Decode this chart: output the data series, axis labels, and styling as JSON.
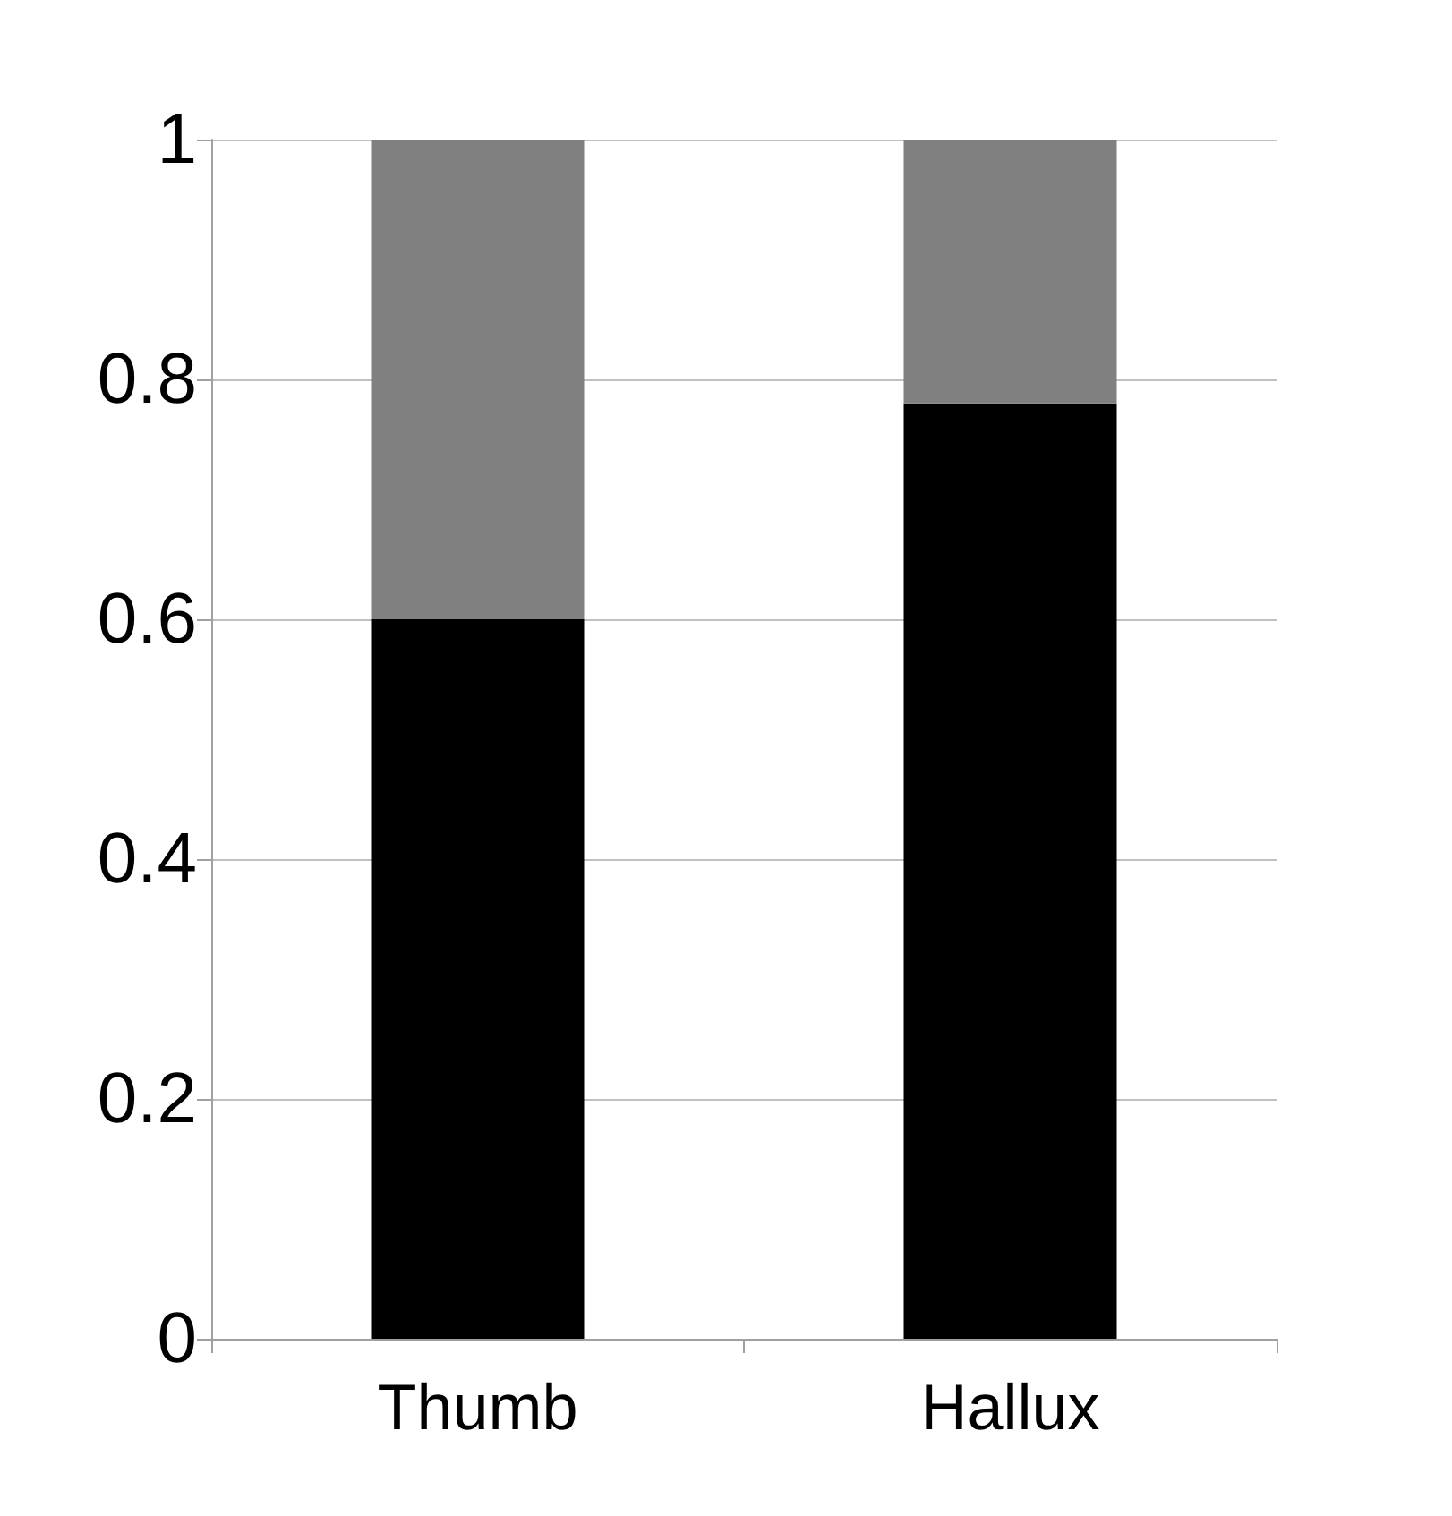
{
  "chart_data": {
    "type": "bar",
    "stacked": true,
    "categories": [
      "Thumb",
      "Hallux"
    ],
    "series": [
      {
        "color": "#000000",
        "values": [
          0.6,
          0.78
        ]
      },
      {
        "color": "#808080",
        "values": [
          0.4,
          0.22
        ]
      }
    ],
    "ylim": [
      0,
      1
    ],
    "yticks": [
      0,
      0.2,
      0.4,
      0.6,
      0.8,
      1
    ],
    "grid": "y"
  }
}
